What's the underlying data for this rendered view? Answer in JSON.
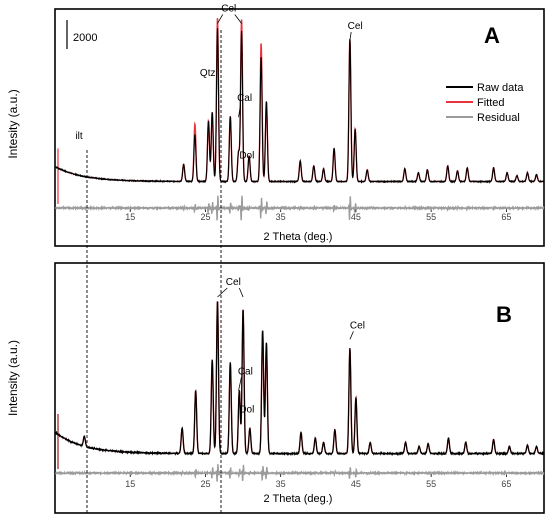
{
  "chart_data": [
    {
      "type": "line",
      "panel_label": "A",
      "xlabel": "2 Theta (deg.)",
      "ylabel": "Intesity (a.u.)",
      "xlim": [
        5,
        70
      ],
      "x_ticks": [
        15,
        25,
        35,
        45,
        55,
        65
      ],
      "scale_bar_label": "2000",
      "legend": {
        "position": "right",
        "entries": [
          "Raw data",
          "Fitted",
          "Residual"
        ]
      },
      "series": [
        {
          "name": "Raw data",
          "color": "#000000"
        },
        {
          "name": "Fitted",
          "color": "#e8323c"
        },
        {
          "name": "Residual",
          "color": "#9b9b9b"
        }
      ],
      "background": {
        "start": 1000,
        "end": 230
      },
      "peaks": [
        {
          "x": 22.1,
          "y": 870
        },
        {
          "x": 23.6,
          "y": 2400
        },
        {
          "x": 25.4,
          "y": 3100
        },
        {
          "x": 25.9,
          "y": 3550
        },
        {
          "x": 26.6,
          "y": 7900
        },
        {
          "x": 28.3,
          "y": 3350
        },
        {
          "x": 29.4,
          "y": 1500
        },
        {
          "x": 29.8,
          "y": 7700
        },
        {
          "x": 30.8,
          "y": 1300
        },
        {
          "x": 32.4,
          "y": 6400
        },
        {
          "x": 33.1,
          "y": 4100
        },
        {
          "x": 37.6,
          "y": 1050
        },
        {
          "x": 39.4,
          "y": 800
        },
        {
          "x": 40.7,
          "y": 650
        },
        {
          "x": 42.1,
          "y": 1700
        },
        {
          "x": 44.2,
          "y": 7300
        },
        {
          "x": 44.9,
          "y": 2700
        },
        {
          "x": 46.5,
          "y": 600
        },
        {
          "x": 51.5,
          "y": 650
        },
        {
          "x": 53.3,
          "y": 450
        },
        {
          "x": 54.5,
          "y": 600
        },
        {
          "x": 57.2,
          "y": 800
        },
        {
          "x": 58.5,
          "y": 550
        },
        {
          "x": 59.8,
          "y": 700
        },
        {
          "x": 63.3,
          "y": 700
        },
        {
          "x": 65.1,
          "y": 450
        },
        {
          "x": 66.4,
          "y": 300
        },
        {
          "x": 67.8,
          "y": 450
        },
        {
          "x": 69.0,
          "y": 350
        }
      ],
      "fitted_overshoot": [
        {
          "x": 23.6,
          "y": 2950
        },
        {
          "x": 26.6,
          "y": 8400
        },
        {
          "x": 29.8,
          "y": 8300
        },
        {
          "x": 32.4,
          "y": 7100
        },
        {
          "x": 44.2,
          "y": 7300
        }
      ],
      "annotations": [
        {
          "text": "Cel",
          "x": 28.1,
          "y": 8950
        },
        {
          "text": "Cel",
          "x": 44.9,
          "y": 8050
        },
        {
          "text": "Qtz",
          "x": 25.3,
          "y": 5650
        },
        {
          "text": "Cal",
          "x": 30.2,
          "y": 4350
        },
        {
          "text": "Dol",
          "x": 30.5,
          "y": 1400
        },
        {
          "text": "ilt",
          "x": 8.2,
          "y": 2400
        }
      ]
    },
    {
      "type": "line",
      "panel_label": "B",
      "xlabel": "2 Theta (deg.)",
      "ylabel": "Intensity (a.u.)",
      "xlim": [
        5,
        70
      ],
      "x_ticks": [
        15,
        25,
        35,
        45,
        55,
        65
      ],
      "series": [
        {
          "name": "Raw data",
          "color": "#000000"
        },
        {
          "name": "Fitted",
          "color": "#9b1b1b"
        },
        {
          "name": "Residual",
          "color": "#9b9b9b"
        }
      ],
      "background": {
        "start": 1000,
        "end": 230
      },
      "peaks": [
        {
          "x": 8.9,
          "y": 350
        },
        {
          "x": 21.9,
          "y": 900
        },
        {
          "x": 23.7,
          "y": 2250
        },
        {
          "x": 25.9,
          "y": 3350
        },
        {
          "x": 26.6,
          "y": 5450
        },
        {
          "x": 28.3,
          "y": 3250
        },
        {
          "x": 29.5,
          "y": 2250
        },
        {
          "x": 30.0,
          "y": 5150
        },
        {
          "x": 30.9,
          "y": 900
        },
        {
          "x": 32.6,
          "y": 4400
        },
        {
          "x": 33.1,
          "y": 3950
        },
        {
          "x": 37.7,
          "y": 750
        },
        {
          "x": 39.6,
          "y": 550
        },
        {
          "x": 40.7,
          "y": 400
        },
        {
          "x": 42.2,
          "y": 850
        },
        {
          "x": 44.2,
          "y": 3750
        },
        {
          "x": 45.0,
          "y": 2000
        },
        {
          "x": 46.9,
          "y": 400
        },
        {
          "x": 51.6,
          "y": 400
        },
        {
          "x": 53.4,
          "y": 250
        },
        {
          "x": 54.6,
          "y": 350
        },
        {
          "x": 57.3,
          "y": 550
        },
        {
          "x": 59.6,
          "y": 400
        },
        {
          "x": 63.3,
          "y": 500
        },
        {
          "x": 65.4,
          "y": 250
        },
        {
          "x": 67.8,
          "y": 300
        },
        {
          "x": 69.0,
          "y": 250
        }
      ],
      "annotations": [
        {
          "text": "Cel",
          "x": 28.7,
          "y": 6250
        },
        {
          "text": "Cel",
          "x": 45.2,
          "y": 4700
        },
        {
          "text": "Cal",
          "x": 30.3,
          "y": 3050
        },
        {
          "text": "Dol",
          "x": 30.5,
          "y": 1700
        }
      ]
    }
  ]
}
